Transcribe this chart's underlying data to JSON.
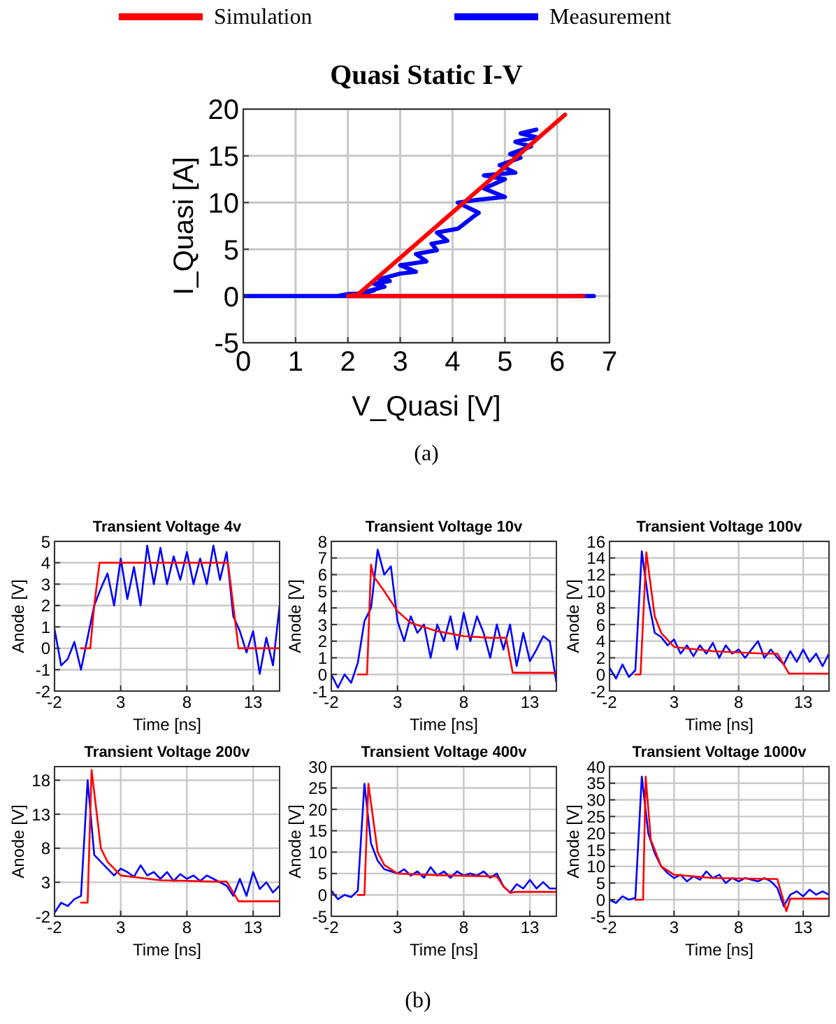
{
  "chart_data": [
    {
      "type": "line",
      "title": "Quasi Static I-V",
      "xlabel": "V_Quasi [V]",
      "ylabel": "I_Quasi [A]",
      "xlim": [
        0,
        7
      ],
      "xticks": [
        0,
        1,
        2,
        3,
        4,
        5,
        6,
        7
      ],
      "ylim": [
        -5,
        20
      ],
      "yticks": [
        -5,
        0,
        5,
        10,
        15,
        20
      ],
      "grid": true,
      "legend": "top",
      "annotations": [
        "(a)"
      ],
      "series": [
        {
          "name": "Simulation",
          "color": "#ff0000",
          "x": [
            6.5,
            2.0,
            2.2,
            6.15
          ],
          "values": [
            0,
            0,
            0.2,
            19.4
          ]
        },
        {
          "name": "Measurement",
          "color": "#0000ff",
          "x": [
            0,
            6.7,
            1.8,
            2.0,
            2.3,
            2.5,
            2.3,
            2.7,
            2.5,
            2.8,
            2.6,
            3.0,
            3.3,
            3.0,
            3.5,
            3.3,
            3.7,
            3.6,
            3.9,
            3.7,
            4.1,
            4.4,
            4.5,
            4.1,
            4.5,
            5.0,
            4.6,
            5.0,
            4.6,
            5.2,
            4.9,
            5.3,
            5.1,
            5.5,
            5.2,
            5.6,
            5.3,
            5.6
          ],
          "values": [
            0,
            0,
            0,
            0.2,
            0.3,
            0.6,
            0.4,
            1.0,
            1.3,
            1.6,
            1.8,
            2.4,
            2.6,
            3.3,
            3.7,
            4.5,
            4.9,
            5.6,
            5.9,
            6.8,
            7.2,
            8.5,
            8.9,
            10,
            10.3,
            10.6,
            11.5,
            12.5,
            12.9,
            13.2,
            14,
            14.8,
            15.2,
            16.0,
            16.5,
            17.0,
            17.4,
            17.8
          ]
        }
      ]
    },
    {
      "type": "line",
      "title": "Transient Voltage 4v",
      "xlabel": "Time [ns]",
      "ylabel": "Anode [V]",
      "xlim": [
        -2,
        15
      ],
      "xticks": [
        -2,
        3,
        8,
        13
      ],
      "ylim": [
        -2,
        5
      ],
      "yticks": [
        -2,
        -1,
        0,
        1,
        2,
        3,
        4,
        5
      ],
      "grid": true,
      "x": [
        -2,
        -1.5,
        -1,
        -0.5,
        0,
        0.5,
        1,
        1.5,
        2,
        2.5,
        3,
        3.5,
        4,
        4.5,
        5,
        5.5,
        6,
        6.5,
        7,
        7.5,
        8,
        8.5,
        9,
        9.5,
        10,
        10.5,
        11,
        11.5,
        12,
        12.5,
        13,
        13.5,
        14,
        14.5,
        15
      ],
      "series": [
        {
          "color": "#ff0000",
          "x": [
            0,
            0.7,
            1.0,
            1.4,
            11.1,
            11.5,
            11.9,
            15
          ],
          "values": [
            0,
            0,
            2,
            4,
            4,
            2,
            0,
            0
          ]
        },
        {
          "color": "#0000ff",
          "values": [
            0.9,
            -0.8,
            -0.5,
            0.3,
            -1.0,
            0.5,
            2.0,
            2.8,
            3.5,
            2.0,
            4.2,
            2.3,
            3.8,
            2.0,
            4.8,
            3.0,
            4.7,
            3.0,
            4.3,
            3.2,
            4.5,
            3.0,
            4.2,
            3.0,
            4.8,
            3.2,
            4.5,
            1.5,
            0.8,
            -0.2,
            0.8,
            -1.2,
            0.5,
            -0.8,
            2.0
          ]
        }
      ]
    },
    {
      "type": "line",
      "title": "Transient Voltage 10v",
      "xlabel": "Time [ns]",
      "ylabel": "Anode [V]",
      "xlim": [
        -2,
        15
      ],
      "xticks": [
        -2,
        3,
        8,
        13
      ],
      "ylim": [
        -1,
        8
      ],
      "yticks": [
        -1,
        0,
        1,
        2,
        3,
        4,
        5,
        6,
        7,
        8
      ],
      "grid": true,
      "x": [
        -2,
        -1.5,
        -1,
        -0.5,
        0,
        0.5,
        1,
        1.5,
        2,
        2.5,
        3,
        3.5,
        4,
        4.5,
        5,
        5.5,
        6,
        6.5,
        7,
        7.5,
        8,
        8.5,
        9,
        9.5,
        10,
        10.5,
        11,
        11.5,
        12,
        12.5,
        13,
        13.5,
        14,
        14.5,
        15
      ],
      "series": [
        {
          "color": "#ff0000",
          "x": [
            0,
            0.7,
            1.0,
            1.2,
            2,
            3,
            4,
            6,
            8,
            10,
            11.2,
            11.7,
            15
          ],
          "values": [
            0,
            0,
            6.6,
            5.9,
            5.0,
            3.8,
            3.1,
            2.6,
            2.3,
            2.2,
            2.2,
            0.1,
            0.1
          ]
        },
        {
          "color": "#0000ff",
          "values": [
            0,
            -0.8,
            0,
            -0.5,
            0.7,
            3.2,
            4.0,
            7.5,
            6.0,
            6.5,
            3.2,
            2.0,
            3.5,
            2.5,
            3.0,
            1.0,
            3.0,
            2.0,
            3.5,
            1.5,
            3.7,
            2.0,
            3.5,
            2.5,
            1.0,
            3.0,
            1.5,
            3.0,
            0.5,
            2.5,
            0.8,
            1.5,
            2.3,
            2.0,
            -0.5
          ]
        }
      ]
    },
    {
      "type": "line",
      "title": "Transient Voltage 100v",
      "xlabel": "Time [ns]",
      "ylabel": "Anode [V]",
      "xlim": [
        -2,
        15
      ],
      "xticks": [
        -2,
        3,
        8,
        13
      ],
      "ylim": [
        -2,
        16
      ],
      "yticks": [
        -2,
        0,
        2,
        4,
        6,
        8,
        10,
        12,
        14,
        16
      ],
      "grid": true,
      "x": [
        -2,
        -1.5,
        -1,
        -0.5,
        0,
        0.5,
        1,
        1.5,
        2,
        2.5,
        3,
        3.5,
        4,
        4.5,
        5,
        5.5,
        6,
        6.5,
        7,
        7.5,
        8,
        8.5,
        9,
        9.5,
        10,
        10.5,
        11,
        11.5,
        12,
        12.5,
        13,
        13.5,
        14,
        14.5,
        15
      ],
      "series": [
        {
          "color": "#ff0000",
          "x": [
            0,
            0.4,
            0.85,
            1.5,
            2,
            3,
            6,
            10,
            11,
            11.9,
            15
          ],
          "values": [
            0,
            0,
            14.7,
            7,
            5,
            3.3,
            2.8,
            2.5,
            2.5,
            0.1,
            0.1
          ]
        },
        {
          "color": "#0000ff",
          "values": [
            0.8,
            -0.5,
            1.2,
            -0.3,
            0.5,
            14.8,
            9,
            5,
            4.5,
            3.5,
            4.2,
            2.5,
            3.5,
            2.2,
            3.5,
            2.5,
            3.8,
            2.0,
            3.5,
            2.5,
            3.0,
            2.0,
            3.0,
            4.0,
            2.0,
            3.0,
            2.0,
            1.2,
            2.8,
            1.5,
            3.0,
            1.5,
            2.5,
            1.0,
            2.5
          ]
        }
      ]
    },
    {
      "type": "line",
      "title": "Transient Voltage 200v",
      "xlabel": "Time [ns]",
      "ylabel": "Anode [V]",
      "xlim": [
        -2,
        15
      ],
      "xticks": [
        -2,
        3,
        8,
        13
      ],
      "ylim": [
        -2,
        20
      ],
      "yticks": [
        -2,
        3,
        8,
        13,
        18
      ],
      "grid": true,
      "x": [
        -2,
        -1.5,
        -1,
        -0.5,
        0,
        0.5,
        1,
        1.5,
        2,
        2.5,
        3,
        3.5,
        4,
        4.5,
        5,
        5.5,
        6,
        6.5,
        7,
        7.5,
        8,
        8.5,
        9,
        9.5,
        10,
        10.5,
        11,
        11.5,
        12,
        12.5,
        13,
        13.5,
        14,
        14.5,
        15
      ],
      "series": [
        {
          "color": "#ff0000",
          "x": [
            0,
            0.5,
            0.8,
            1.5,
            2,
            3,
            6,
            10,
            11,
            11.9,
            15
          ],
          "values": [
            0,
            0,
            19.5,
            8,
            6,
            4,
            3.3,
            3.1,
            3.1,
            0.2,
            0.2
          ]
        },
        {
          "color": "#0000ff",
          "values": [
            -1.5,
            0,
            -0.5,
            0.5,
            1.0,
            18,
            7,
            6,
            5,
            4,
            5,
            4.5,
            3.8,
            5.5,
            4,
            4.5,
            3.5,
            4.5,
            3.2,
            4.2,
            3.5,
            4.0,
            3.2,
            4.0,
            3.5,
            3.0,
            2.5,
            1.0,
            3.5,
            1.0,
            4.5,
            2.0,
            3.0,
            1.5,
            2.5
          ]
        }
      ]
    },
    {
      "type": "line",
      "title": "Transient Voltage 400v",
      "xlabel": "Time [ns]",
      "ylabel": "Anode [V]",
      "xlim": [
        -2,
        15
      ],
      "xticks": [
        -2,
        3,
        8,
        13
      ],
      "ylim": [
        -5,
        30
      ],
      "yticks": [
        -5,
        0,
        5,
        10,
        15,
        20,
        25,
        30
      ],
      "grid": true,
      "x": [
        -2,
        -1.5,
        -1,
        -0.5,
        0,
        0.5,
        1,
        1.5,
        2,
        2.5,
        3,
        3.5,
        4,
        4.5,
        5,
        5.5,
        6,
        6.5,
        7,
        7.5,
        8,
        8.5,
        9,
        9.5,
        10,
        10.5,
        11,
        11.5,
        12,
        12.5,
        13,
        13.5,
        14,
        14.5,
        15
      ],
      "series": [
        {
          "color": "#ff0000",
          "x": [
            0,
            0.5,
            0.8,
            1.5,
            2,
            3,
            6,
            10.5,
            11,
            11.5,
            12,
            15
          ],
          "values": [
            0,
            0,
            26,
            10,
            7,
            5,
            4.6,
            4.3,
            2,
            0.5,
            0.7,
            0.7
          ]
        },
        {
          "color": "#0000ff",
          "values": [
            1.0,
            -1,
            0,
            -0.5,
            1.0,
            26,
            12,
            8,
            6,
            5.5,
            5,
            6,
            4.5,
            5.5,
            4,
            6.5,
            4.5,
            5.5,
            4,
            5.5,
            4.5,
            5,
            4.5,
            5.5,
            4,
            5,
            2,
            0.5,
            2.5,
            1.5,
            3.5,
            1.5,
            3,
            1.5,
            1.5
          ]
        }
      ]
    },
    {
      "type": "line",
      "title": "Transient Voltage 1000v",
      "xlabel": "Time [ns]",
      "ylabel": "Anode [V]",
      "xlim": [
        -2,
        15
      ],
      "xticks": [
        -2,
        3,
        8,
        13
      ],
      "ylim": [
        -5,
        40
      ],
      "yticks": [
        -5,
        0,
        5,
        10,
        15,
        20,
        25,
        30,
        35,
        40
      ],
      "grid": true,
      "annotations": [
        "(b)"
      ],
      "x": [
        -2,
        -1.5,
        -1,
        -0.5,
        0,
        0.5,
        1,
        1.5,
        2,
        2.5,
        3,
        3.5,
        4,
        4.5,
        5,
        5.5,
        6,
        6.5,
        7,
        7.5,
        8,
        8.5,
        9,
        9.5,
        10,
        10.5,
        11,
        11.5,
        12,
        12.5,
        13,
        13.5,
        14,
        14.5,
        15
      ],
      "series": [
        {
          "color": "#ff0000",
          "x": [
            0,
            0.6,
            0.8,
            1.2,
            2,
            3,
            6,
            11,
            11.7,
            12,
            15
          ],
          "values": [
            0,
            0,
            37,
            18,
            10,
            7.5,
            6.5,
            6.2,
            -3.5,
            0.3,
            0.3
          ]
        },
        {
          "color": "#0000ff",
          "values": [
            0,
            -1,
            1,
            0,
            0.5,
            37,
            20,
            14,
            10,
            8,
            6.5,
            7.5,
            5.5,
            7,
            6,
            8.5,
            6.5,
            7.5,
            5,
            6.5,
            5.5,
            6.5,
            6,
            5.5,
            6.5,
            5.5,
            3.5,
            -2,
            1.5,
            2.5,
            1,
            3,
            1.5,
            2.5,
            1.5
          ]
        }
      ]
    }
  ]
}
